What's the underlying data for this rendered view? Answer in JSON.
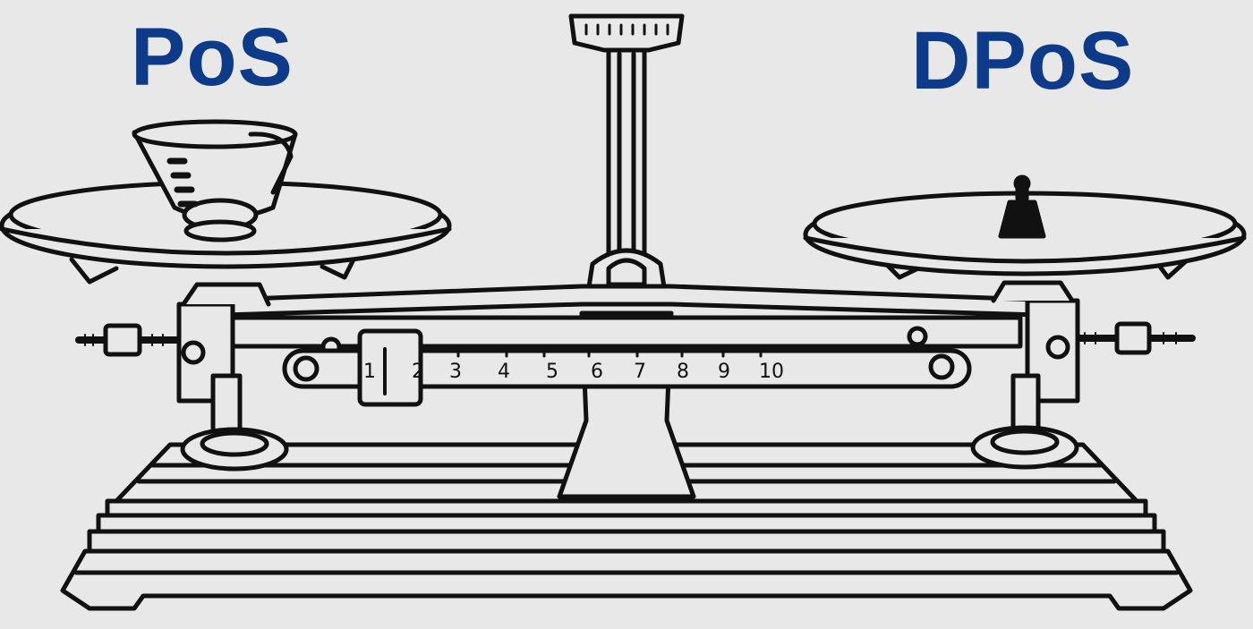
{
  "labels": {
    "left": "PoS",
    "right": "DPoS"
  },
  "scale": {
    "beam_numbers": [
      "1",
      "2",
      "3",
      "4",
      "5",
      "6",
      "7",
      "8",
      "9",
      "10"
    ]
  },
  "colors": {
    "background": "#e8e8e8",
    "label": "#0e3a8a",
    "ink": "#111111",
    "fill": "#ffffff"
  }
}
